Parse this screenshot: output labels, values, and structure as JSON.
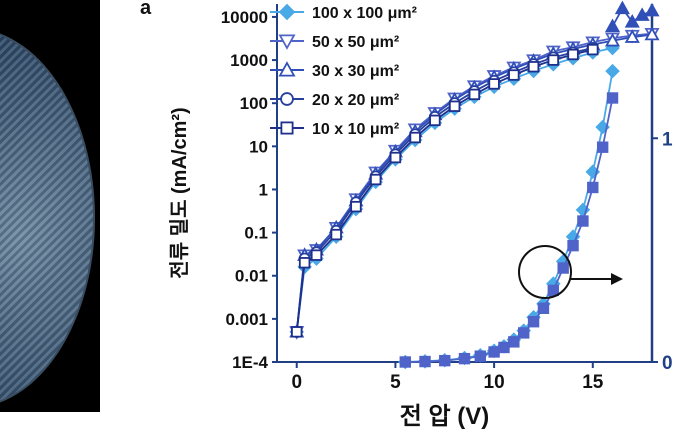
{
  "figure": {
    "panel_letter": "a"
  },
  "chart_data": {
    "type": "line",
    "title": "",
    "xlabel": "전 압 (V)",
    "ylabel_left": "전류 밀도 (mA/cm²)",
    "ylabel_right": "",
    "xlim": [
      -1,
      18
    ],
    "ylim_left_log10": [
      -4,
      4.3
    ],
    "ylim_right": [
      0,
      1.6
    ],
    "x_ticks": [
      0,
      5,
      10,
      15
    ],
    "x_tick_labels": [
      "0",
      "5",
      "10",
      "15"
    ],
    "y_ticks_left_log10": [
      4,
      3,
      2,
      1,
      0,
      -1,
      -2,
      -3,
      -4
    ],
    "y_tick_labels_left": [
      "10000",
      "1000",
      "100",
      "10",
      "1",
      "0.1",
      "0.01",
      "0.001",
      "1E-4"
    ],
    "y_ticks_right": [
      0,
      1
    ],
    "y_tick_labels_right": [
      "0",
      "1"
    ],
    "scale_left": "log",
    "legend_position": "top-left",
    "grid": false,
    "colors": {
      "axis": "#1f3f86",
      "series": [
        "#49a9e6",
        "#4f63c9",
        "#3050b8",
        "#27409f",
        "#1f2f8c"
      ]
    },
    "series": [
      {
        "name": "100 x 100 μm²",
        "marker": "diamond",
        "axis": "left",
        "x": [
          0,
          0.4,
          1,
          2,
          3,
          4,
          5,
          6,
          7,
          8,
          9,
          10,
          11,
          12,
          13,
          14,
          15,
          16
        ],
        "y": [
          0.0005,
          0.016,
          0.025,
          0.08,
          0.35,
          1.5,
          5,
          14,
          35,
          75,
          140,
          240,
          370,
          560,
          800,
          1100,
          1500,
          1900
        ]
      },
      {
        "name": "50 x 50 μm²",
        "marker": "triangle-down",
        "axis": "left",
        "x": [
          0,
          0.4,
          1,
          2,
          3,
          4,
          5,
          6,
          7,
          8,
          9,
          10,
          11,
          12,
          13,
          14,
          15,
          16,
          17,
          18
        ],
        "y": [
          0.0005,
          0.03,
          0.04,
          0.13,
          0.6,
          2.5,
          8,
          25,
          60,
          130,
          250,
          430,
          680,
          1000,
          1600,
          2000,
          2600,
          3200,
          3700,
          4100
        ]
      },
      {
        "name": "30 x 30 μm²",
        "marker": "triangle-up",
        "axis": "left",
        "x": [
          0,
          0.4,
          1,
          2,
          3,
          4,
          5,
          6,
          7,
          8,
          9,
          10,
          11,
          12,
          13,
          14,
          15,
          16,
          17,
          18
        ],
        "y": [
          0.0005,
          0.03,
          0.04,
          0.13,
          0.55,
          2.3,
          7.5,
          22,
          55,
          120,
          230,
          400,
          630,
          950,
          1400,
          1800,
          2300,
          2800,
          3400,
          3900
        ]
      },
      {
        "name": "20 x 20 μm²",
        "marker": "circle",
        "axis": "left",
        "x": [
          0,
          0.4,
          1,
          2,
          3,
          4,
          5,
          6,
          7,
          8,
          9,
          10,
          11,
          12,
          13,
          14,
          15
        ],
        "y": [
          0.0005,
          0.025,
          0.035,
          0.11,
          0.5,
          2.0,
          6.5,
          19,
          48,
          100,
          190,
          330,
          520,
          800,
          1150,
          1500,
          1900
        ]
      },
      {
        "name": "10 x 10 μm²",
        "marker": "square",
        "axis": "left",
        "x": [
          0,
          0.4,
          1,
          2,
          3,
          4,
          5,
          6,
          7,
          8,
          9,
          10,
          11,
          12,
          13,
          14,
          15
        ],
        "y": [
          0.0005,
          0.02,
          0.03,
          0.09,
          0.4,
          1.7,
          5.5,
          16,
          40,
          85,
          160,
          280,
          450,
          700,
          1000,
          1350,
          1750
        ]
      },
      {
        "name": "",
        "marker": "diamond",
        "axis": "right",
        "x": [
          5.5,
          6.5,
          7.5,
          8.5,
          9.3,
          10,
          10.5,
          11,
          11.5,
          12,
          12.5,
          13,
          13.5,
          14,
          14.5,
          15,
          15.5,
          16
        ],
        "y": [
          0.0,
          0.003,
          0.008,
          0.018,
          0.03,
          0.05,
          0.07,
          0.1,
          0.14,
          0.2,
          0.26,
          0.35,
          0.45,
          0.56,
          0.68,
          0.85,
          1.05,
          1.3
        ]
      },
      {
        "name": "",
        "marker": "square",
        "axis": "right",
        "x": [
          5.5,
          6.5,
          7.5,
          8.5,
          9.3,
          10,
          10.5,
          11,
          11.5,
          12,
          12.5,
          13,
          13.5,
          14,
          14.5,
          15,
          15.5,
          16
        ],
        "y": [
          0.0,
          0.002,
          0.006,
          0.015,
          0.026,
          0.045,
          0.065,
          0.09,
          0.13,
          0.18,
          0.24,
          0.32,
          0.42,
          0.52,
          0.63,
          0.78,
          0.96,
          1.18
        ]
      },
      {
        "name": "",
        "marker": "triangle-up",
        "axis": "right",
        "x": [
          16,
          16.5,
          17,
          17.5,
          18
        ],
        "y": [
          1.5,
          1.58,
          1.52,
          1.55,
          1.57
        ]
      }
    ]
  }
}
